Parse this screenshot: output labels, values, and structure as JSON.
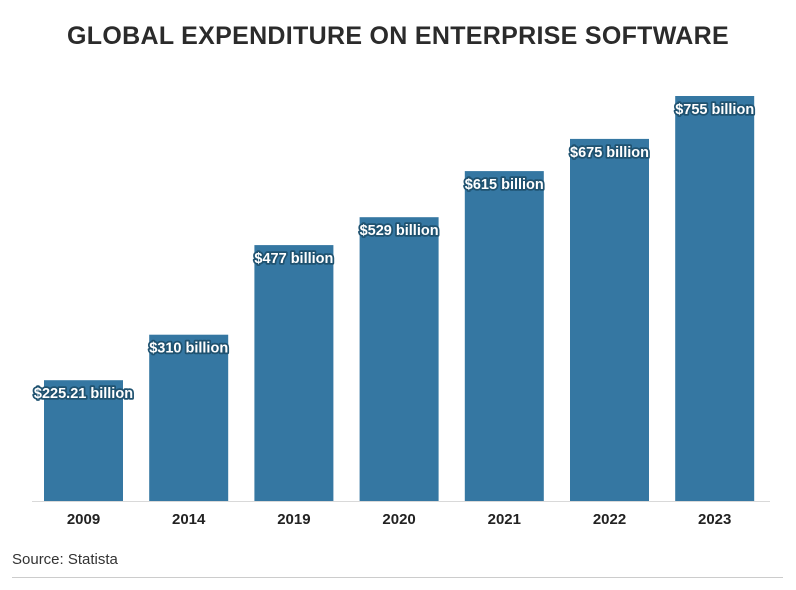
{
  "header": {
    "title": "GLOBAL EXPENDITURE ON ENTERPRISE SOFTWARE"
  },
  "footer": {
    "source": "Source: Statista"
  },
  "colors": {
    "bar": "#3577a2",
    "label_outline": "#1f5270",
    "baseline": "#d9d9d9"
  },
  "chart_data": {
    "type": "bar",
    "title": "GLOBAL EXPENDITURE ON ENTERPRISE SOFTWARE",
    "xlabel": "",
    "ylabel": "",
    "categories": [
      "2009",
      "2014",
      "2019",
      "2020",
      "2021",
      "2022",
      "2023"
    ],
    "values": [
      225.21,
      310,
      477,
      529,
      615,
      675,
      755
    ],
    "data_labels": [
      "$225.21 billion",
      "$310 billion",
      "$477 billion",
      "$529 billion",
      "$615 billion",
      "$675 billion",
      "$755 billion"
    ],
    "ylim": [
      0,
      755
    ],
    "grid": false,
    "legend": "none"
  }
}
